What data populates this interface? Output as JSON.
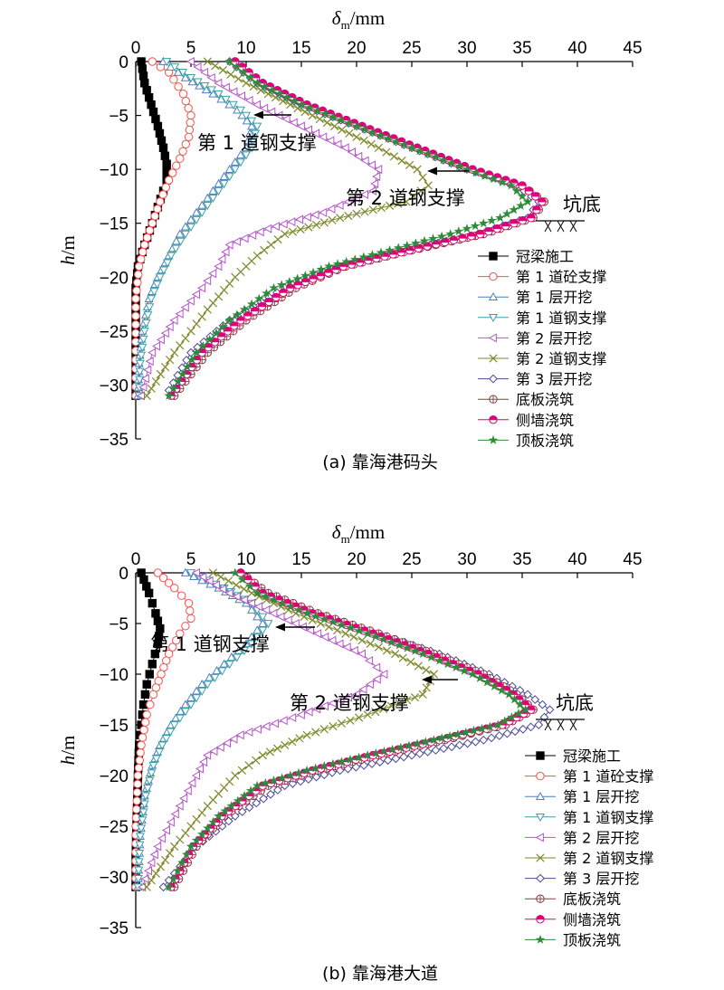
{
  "chart_data": [
    {
      "type": "line",
      "caption": "(a) 靠海港码头",
      "xlabel": "δm/mm",
      "xlabel_main": "δ",
      "xlabel_sub": "m",
      "xlabel_unit": "/mm",
      "ylabel": "h/m",
      "ylabel_main": "h",
      "ylabel_unit": "/m",
      "xlim": [
        0,
        45
      ],
      "ylim": [
        -35,
        0
      ],
      "x_ticks": [
        "0",
        "5",
        "10",
        "15",
        "20",
        "25",
        "30",
        "35",
        "40",
        "45"
      ],
      "y_ticks": [
        "0",
        "−5",
        "−10",
        "−15",
        "−20",
        "−25",
        "−30",
        "−35"
      ],
      "x_axis_position": "top",
      "grid": false,
      "legend_position": "lower-right",
      "annotations": [
        {
          "text": "第 1 道钢支撑",
          "arrow": true
        },
        {
          "text": "第 2 道钢支撑",
          "arrow": true
        },
        {
          "text": "坑底",
          "symbol": "ground"
        }
      ],
      "series": [
        {
          "name": "冠梁施工",
          "color": "#000000",
          "marker": "square-filled",
          "x": [
            0.5,
            0.8,
            1.4,
            2.0,
            2.5,
            2.8,
            2.8,
            2.5,
            2.0,
            1.5,
            0.8,
            0.2,
            0.0,
            0.0,
            0.0,
            0.0
          ],
          "y": [
            0,
            -2,
            -4,
            -6,
            -8,
            -9.5,
            -11,
            -12,
            -13.5,
            -15,
            -17,
            -19,
            -21,
            -24,
            -27,
            -31
          ]
        },
        {
          "name": "第 1 道砼支撑",
          "color": "#ff4d4d",
          "marker": "circle-open",
          "x": [
            1.5,
            3.0,
            4.3,
            5.0,
            4.8,
            4.0,
            3.0,
            2.2,
            1.5,
            0.8,
            0.3,
            0.0,
            0.0,
            0.0
          ],
          "y": [
            0,
            -1,
            -3,
            -5,
            -7,
            -9,
            -11,
            -13,
            -15,
            -17,
            -19,
            -22,
            -26,
            -31
          ]
        },
        {
          "name": "第 1 层开挖",
          "color": "#4f7fbf",
          "marker": "triangle-up-open",
          "x": [
            2.5,
            4.5,
            7.0,
            9.2,
            10.5,
            10.0,
            8.5,
            7.0,
            5.5,
            4.0,
            3.0,
            2.0,
            1.2,
            0.6,
            0.3,
            0.2
          ],
          "y": [
            0,
            -1.5,
            -3,
            -4.5,
            -6,
            -8,
            -10,
            -12,
            -14,
            -16,
            -18,
            -20,
            -22,
            -25,
            -28,
            -31
          ]
        },
        {
          "name": "第 1 道钢支撑",
          "color": "#39a0a8",
          "marker": "triangle-down-open",
          "x": [
            2.8,
            5.0,
            7.5,
            9.5,
            11.0,
            10.5,
            9.0,
            7.5,
            6.0,
            4.5,
            3.2,
            2.2,
            1.4,
            0.8,
            0.4,
            0.3
          ],
          "y": [
            0,
            -1.5,
            -3,
            -4.5,
            -6,
            -8,
            -10,
            -12,
            -14,
            -16,
            -18,
            -20,
            -22,
            -25,
            -28,
            -31
          ]
        },
        {
          "name": "第 2 层开挖",
          "color": "#b455c8",
          "marker": "triangle-left-open",
          "x": [
            5.0,
            7.5,
            11.0,
            15.0,
            19.0,
            22.0,
            21.5,
            17.0,
            12.0,
            8.5,
            7.5,
            6.0,
            3.5,
            1.5,
            0.5
          ],
          "y": [
            0,
            -2,
            -4,
            -6,
            -8,
            -10,
            -12,
            -14,
            -15.5,
            -17,
            -19,
            -21,
            -24,
            -27,
            -31
          ]
        },
        {
          "name": "第 2 道钢支撑",
          "color": "#7f8a2b",
          "marker": "x",
          "x": [
            6.5,
            10.0,
            14.0,
            18.0,
            22.0,
            25.5,
            26.5,
            24.5,
            18.5,
            13.5,
            11.0,
            9.0,
            6.5,
            3.5,
            1.0
          ],
          "y": [
            0,
            -2,
            -4,
            -6,
            -8,
            -10,
            -11.5,
            -13,
            -14.5,
            -16,
            -18,
            -20,
            -23,
            -27,
            -31
          ]
        },
        {
          "name": "第 3 层开挖",
          "color": "#4a4a96",
          "marker": "diamond-open",
          "x": [
            8.5,
            11.0,
            15.0,
            20.0,
            25.0,
            30.0,
            34.5,
            36.5,
            35.5,
            31.0,
            24.5,
            18.5,
            13.5,
            8.5,
            5.0,
            3.0
          ],
          "y": [
            0,
            -2,
            -4,
            -6,
            -8,
            -10,
            -11.5,
            -13,
            -14.5,
            -16,
            -17.5,
            -19,
            -21,
            -24,
            -27,
            -30.5
          ]
        },
        {
          "name": "底板浇筑",
          "color": "#8b3a3a",
          "marker": "circle-cross",
          "x": [
            9.0,
            11.5,
            15.5,
            20.5,
            25.5,
            30.5,
            35.0,
            37.0,
            36.0,
            31.5,
            25.0,
            19.0,
            14.5,
            10.0,
            6.5,
            3.5
          ],
          "y": [
            0,
            -2,
            -4,
            -6,
            -8,
            -10,
            -11.5,
            -13,
            -14.5,
            -16,
            -17.5,
            -19,
            -21,
            -24,
            -27,
            -31
          ]
        },
        {
          "name": "侧墙浇筑",
          "color": "#e0007a",
          "marker": "circle-half",
          "x": [
            9.0,
            11.5,
            15.5,
            20.5,
            25.5,
            30.5,
            35.0,
            36.8,
            35.8,
            31.2,
            24.8,
            18.8,
            14.0,
            9.5,
            6.0,
            3.2
          ],
          "y": [
            0,
            -2,
            -4,
            -6,
            -8,
            -10,
            -11.5,
            -13,
            -14.5,
            -16,
            -17.5,
            -19,
            -21,
            -24,
            -27,
            -31
          ]
        },
        {
          "name": "顶板浇筑",
          "color": "#2e8b3a",
          "marker": "star",
          "x": [
            8.5,
            11.0,
            15.0,
            20.0,
            25.0,
            30.0,
            34.0,
            35.5,
            33.0,
            28.5,
            23.0,
            17.5,
            12.5,
            8.5,
            5.5,
            3.0
          ],
          "y": [
            0,
            -2,
            -4,
            -6,
            -8,
            -10,
            -11.5,
            -13,
            -14.5,
            -16,
            -17.5,
            -19,
            -21,
            -24,
            -27,
            -31
          ]
        }
      ]
    },
    {
      "type": "line",
      "caption": "(b) 靠海港大道",
      "xlabel": "δm/mm",
      "xlabel_main": "δ",
      "xlabel_sub": "m",
      "xlabel_unit": "/mm",
      "ylabel": "h/m",
      "ylabel_main": "h",
      "ylabel_unit": "/m",
      "xlim": [
        0,
        45
      ],
      "ylim": [
        -35,
        0
      ],
      "x_ticks": [
        "0",
        "5",
        "10",
        "15",
        "20",
        "25",
        "30",
        "35",
        "40",
        "45"
      ],
      "y_ticks": [
        "0",
        "−5",
        "−10",
        "−15",
        "−20",
        "−25",
        "−30",
        "−35"
      ],
      "x_axis_position": "top",
      "grid": false,
      "legend_position": "lower-right",
      "annotations": [
        {
          "text": "第 1 道钢支撑",
          "arrow": true
        },
        {
          "text": "第 2 道钢支撑",
          "arrow": true
        },
        {
          "text": "坑底",
          "symbol": "ground"
        }
      ],
      "series": [
        {
          "name": "冠梁施工",
          "color": "#000000",
          "marker": "square-filled",
          "x": [
            0.5,
            1.2,
            1.8,
            2.2,
            2.0,
            1.5,
            1.0,
            0.7,
            0.5,
            0.3,
            0.2,
            0.1,
            0.0,
            0.0
          ],
          "y": [
            0,
            -2,
            -4,
            -5.5,
            -7,
            -9,
            -11,
            -13,
            -15,
            -17,
            -20,
            -24,
            -28,
            -31
          ]
        },
        {
          "name": "第 1 道砼支撑",
          "color": "#ff4d4d",
          "marker": "circle-open",
          "x": [
            2.0,
            3.5,
            4.8,
            5.0,
            4.0,
            3.0,
            2.3,
            1.6,
            1.0,
            0.5,
            0.2,
            0.0,
            0.0
          ],
          "y": [
            0,
            -1.5,
            -3,
            -4.5,
            -6,
            -8,
            -10,
            -12,
            -14,
            -17,
            -20,
            -25,
            -31
          ]
        },
        {
          "name": "第 1 层开挖",
          "color": "#4f7fbf",
          "marker": "triangle-up-open",
          "x": [
            4.5,
            7.5,
            10.0,
            11.5,
            10.0,
            8.0,
            6.0,
            4.5,
            3.2,
            2.2,
            1.5,
            0.8,
            0.4,
            0.2
          ],
          "y": [
            0,
            -1.5,
            -3,
            -5,
            -7,
            -9,
            -11,
            -13,
            -15,
            -17,
            -19,
            -22,
            -26,
            -31
          ]
        },
        {
          "name": "第 1 道钢支撑",
          "color": "#39a0a8",
          "marker": "triangle-down-open",
          "x": [
            5.0,
            8.0,
            10.5,
            12.0,
            10.5,
            8.5,
            6.5,
            5.0,
            3.5,
            2.4,
            1.6,
            0.9,
            0.4,
            0.2
          ],
          "y": [
            0,
            -1.5,
            -3,
            -5,
            -7,
            -9,
            -11,
            -13,
            -15,
            -17,
            -19,
            -22,
            -26,
            -31
          ]
        },
        {
          "name": "第 2 层开挖",
          "color": "#b455c8",
          "marker": "triangle-left-open",
          "x": [
            5.5,
            8.5,
            12.5,
            16.5,
            20.5,
            22.5,
            20.0,
            15.0,
            9.5,
            6.5,
            5.5,
            4.0,
            2.0,
            0.6
          ],
          "y": [
            0,
            -2,
            -4,
            -6,
            -8,
            -10,
            -12,
            -14,
            -16,
            -18,
            -20,
            -23,
            -27,
            -31
          ]
        },
        {
          "name": "第 2 道钢支撑",
          "color": "#7f8a2b",
          "marker": "x",
          "x": [
            7.0,
            10.5,
            14.5,
            19.0,
            23.5,
            27.0,
            26.0,
            21.0,
            15.5,
            11.5,
            9.0,
            6.5,
            3.5,
            1.0
          ],
          "y": [
            0,
            -2,
            -4,
            -6,
            -8,
            -10,
            -12,
            -14,
            -16,
            -18,
            -20,
            -23,
            -27,
            -31
          ]
        },
        {
          "name": "第 3 层开挖",
          "color": "#4a4a96",
          "marker": "diamond-open",
          "x": [
            9.5,
            12.0,
            16.5,
            22.0,
            27.5,
            32.0,
            35.5,
            37.5,
            36.5,
            31.5,
            25.0,
            18.5,
            13.5,
            9.0,
            5.5,
            2.5
          ],
          "y": [
            0,
            -2,
            -4,
            -6,
            -8,
            -10,
            -12,
            -13.5,
            -15,
            -16.5,
            -18,
            -19.5,
            -21,
            -24,
            -27,
            -31
          ]
        },
        {
          "name": "底板浇筑",
          "color": "#8b3a3a",
          "marker": "circle-cross",
          "x": [
            9.5,
            12.0,
            16.5,
            22.0,
            27.0,
            31.5,
            34.5,
            36.0,
            33.5,
            28.0,
            22.0,
            16.5,
            12.0,
            8.0,
            5.5,
            3.5
          ],
          "y": [
            0,
            -2,
            -4,
            -6,
            -8,
            -10,
            -12,
            -13.5,
            -15,
            -16.5,
            -18,
            -19.5,
            -21,
            -24,
            -27,
            -31
          ]
        },
        {
          "name": "侧墙浇筑",
          "color": "#e0007a",
          "marker": "circle-half",
          "x": [
            9.5,
            11.5,
            16.0,
            21.5,
            26.5,
            31.0,
            34.2,
            35.8,
            33.2,
            27.5,
            21.5,
            16.0,
            11.5,
            7.8,
            5.2,
            3.2
          ],
          "y": [
            0,
            -2,
            -4,
            -6,
            -8,
            -10,
            -12,
            -13.5,
            -15,
            -16.5,
            -18,
            -19.5,
            -21,
            -24,
            -27,
            -31
          ]
        },
        {
          "name": "顶板浇筑",
          "color": "#2e8b3a",
          "marker": "star",
          "x": [
            9.0,
            11.0,
            15.5,
            21.0,
            26.0,
            30.5,
            33.8,
            35.3,
            32.8,
            27.0,
            21.0,
            15.5,
            11.0,
            7.5,
            5.0,
            3.0
          ],
          "y": [
            0,
            -2,
            -4,
            -6,
            -8,
            -10,
            -12,
            -13.5,
            -15,
            -16.5,
            -18,
            -19.5,
            -21,
            -24,
            -27,
            -31
          ]
        }
      ]
    }
  ]
}
